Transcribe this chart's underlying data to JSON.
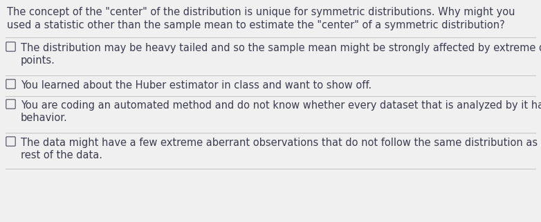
{
  "background_color": "#f0f0f0",
  "question_text_line1": "The concept of the \"center\" of the distribution is unique for symmetric distributions. Why might you",
  "question_text_line2": "used a statistic other than the sample mean to estimate the \"center\" of a symmetric distribution?",
  "options": [
    {
      "line1": "The distribution may be heavy tailed and so the sample mean might be strongly affected by extreme data",
      "line2": "points."
    },
    {
      "line1": "You learned about the Huber estimator in class and want to show off.",
      "line2": null
    },
    {
      "line1": "You are coding an automated method and do not know whether every dataset that is analyzed by it has good",
      "line2": "behavior."
    },
    {
      "line1": "The data might have a few extreme aberrant observations that do not follow the same distribution as the the",
      "line2": "rest of the data."
    }
  ],
  "text_color": "#3c3c50",
  "question_fontsize": 10.5,
  "option_fontsize": 10.5,
  "checkbox_color": "#5a5a6a",
  "line_color": "#c8c8c8",
  "font_family": "DejaVu Sans",
  "fig_width": 7.82,
  "fig_height": 3.21,
  "dpi": 100
}
